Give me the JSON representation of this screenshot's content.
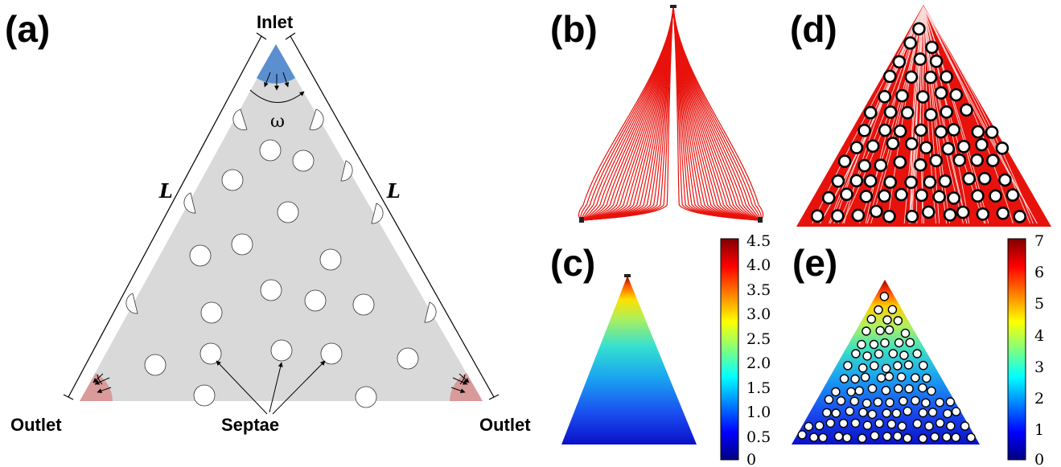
{
  "panels": {
    "a": "(a)",
    "b": "(b)",
    "c": "(c)",
    "d": "(d)",
    "e": "(e)"
  },
  "diagram_a": {
    "inlet": "Inlet",
    "outlet_left": "Outlet",
    "outlet_right": "Outlet",
    "side_left": "L",
    "side_right": "L",
    "angle": "ω",
    "septae": "Septae"
  },
  "colorbar_c": {
    "ticks": [
      "4.5",
      "4.0",
      "3.5",
      "3.0",
      "2.5",
      "2.0",
      "1.5",
      "1.0",
      "0.5",
      "0"
    ]
  },
  "colorbar_e": {
    "ticks": [
      "7",
      "6",
      "5",
      "4",
      "3",
      "2",
      "1",
      "0"
    ]
  },
  "colors": {
    "domain_gray": "#d9d9d9",
    "inlet_blue": "#5b8fd0",
    "outlet_red": "#d99a9a",
    "streamline_red": "#e8120c"
  }
}
